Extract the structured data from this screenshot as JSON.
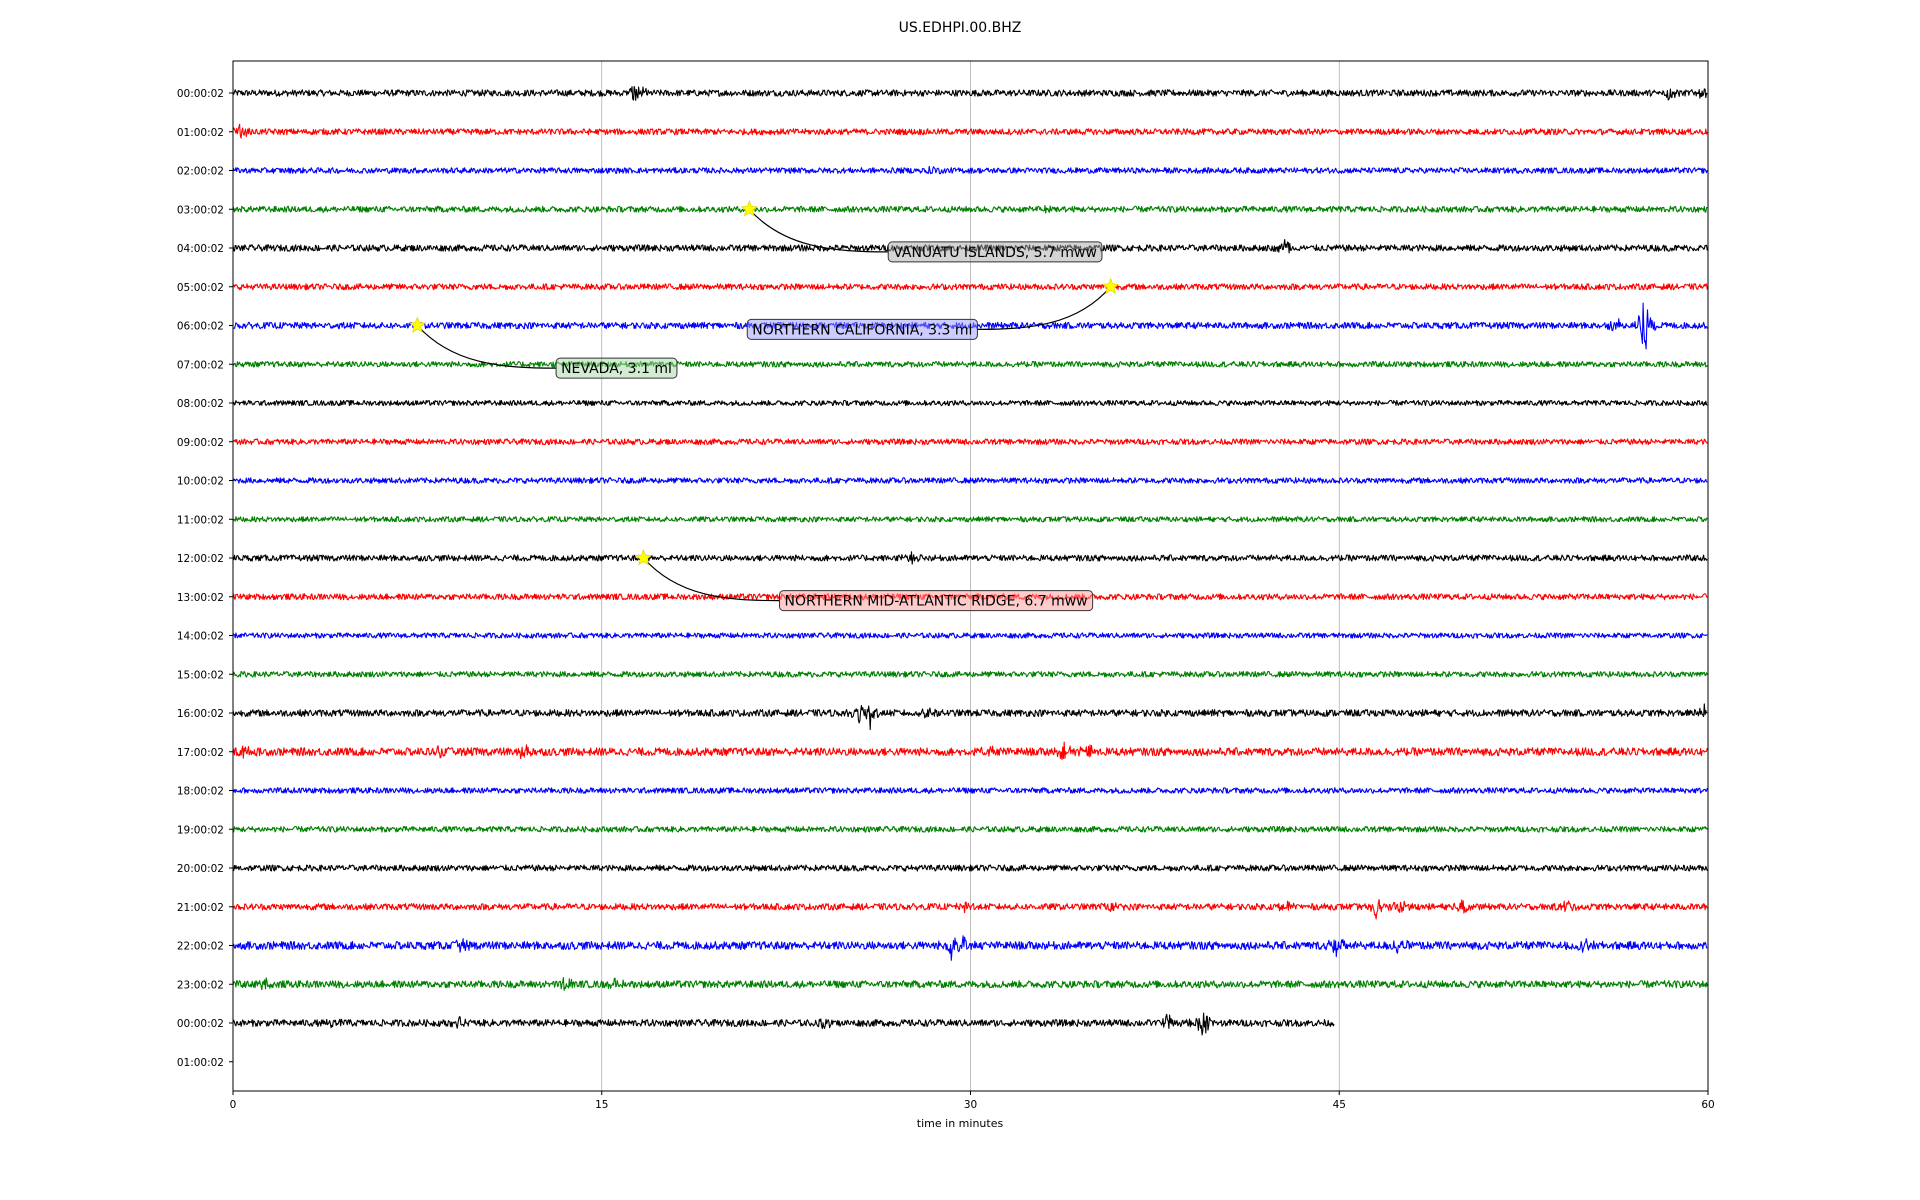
{
  "chart_data": {
    "type": "line",
    "title": "US.EDHPI.00.BHZ",
    "xlabel": "time in minutes",
    "ylabel": "",
    "xlim": [
      0,
      60
    ],
    "xticks": [
      "0",
      "15",
      "30",
      "45",
      "60"
    ],
    "grid": "vertical",
    "colors": [
      "#000000",
      "#ff0000",
      "#0000ff",
      "#008000"
    ],
    "row_labels": [
      "00:00:02",
      "01:00:02",
      "02:00:02",
      "03:00:02",
      "04:00:02",
      "05:00:02",
      "06:00:02",
      "07:00:02",
      "08:00:02",
      "09:00:02",
      "10:00:02",
      "11:00:02",
      "12:00:02",
      "13:00:02",
      "14:00:02",
      "15:00:02",
      "16:00:02",
      "17:00:02",
      "18:00:02",
      "19:00:02",
      "20:00:02",
      "21:00:02",
      "22:00:02",
      "23:00:02",
      "00:00:02",
      "01:00:02"
    ],
    "trace_end_minutes": [
      60,
      60,
      60,
      60,
      60,
      60,
      60,
      60,
      60,
      60,
      60,
      60,
      60,
      60,
      60,
      60,
      60,
      60,
      60,
      60,
      60,
      60,
      60,
      60,
      44.8,
      0
    ],
    "noise_level": [
      0.16,
      0.15,
      0.14,
      0.15,
      0.16,
      0.15,
      0.16,
      0.14,
      0.13,
      0.14,
      0.14,
      0.13,
      0.15,
      0.15,
      0.13,
      0.14,
      0.17,
      0.2,
      0.14,
      0.14,
      0.15,
      0.16,
      0.2,
      0.18,
      0.17,
      0
    ],
    "spikes": [
      {
        "row": 0,
        "minute": 16.4,
        "amp": 0.7
      },
      {
        "row": 0,
        "minute": 58.4,
        "amp": 0.4
      },
      {
        "row": 0,
        "minute": 59.9,
        "amp": 0.35
      },
      {
        "row": 1,
        "minute": 0.3,
        "amp": 0.35
      },
      {
        "row": 2,
        "minute": 28.4,
        "amp": 0.3
      },
      {
        "row": 3,
        "minute": 33.2,
        "amp": 0.4
      },
      {
        "row": 4,
        "minute": 42.8,
        "amp": 0.5
      },
      {
        "row": 6,
        "minute": 57.4,
        "amp": 1.8
      },
      {
        "row": 6,
        "minute": 56.3,
        "amp": 0.4
      },
      {
        "row": 12,
        "minute": 27.6,
        "amp": 0.45
      },
      {
        "row": 16,
        "minute": 25.9,
        "amp": 1.0
      },
      {
        "row": 16,
        "minute": 25.5,
        "amp": 0.5
      },
      {
        "row": 16,
        "minute": 28.1,
        "amp": 0.35
      },
      {
        "row": 16,
        "minute": 59.9,
        "amp": 0.5
      },
      {
        "row": 17,
        "minute": 11.8,
        "amp": 0.6
      },
      {
        "row": 17,
        "minute": 8.5,
        "amp": 0.3
      },
      {
        "row": 17,
        "minute": 30.8,
        "amp": 0.35
      },
      {
        "row": 17,
        "minute": 33.8,
        "amp": 0.4
      },
      {
        "row": 17,
        "minute": 34.8,
        "amp": 0.35
      },
      {
        "row": 17,
        "minute": 0.4,
        "amp": 0.3
      },
      {
        "row": 21,
        "minute": 29.9,
        "amp": 0.4
      },
      {
        "row": 21,
        "minute": 35.7,
        "amp": 0.35
      },
      {
        "row": 21,
        "minute": 42.9,
        "amp": 0.4
      },
      {
        "row": 21,
        "minute": 46.5,
        "amp": 0.5
      },
      {
        "row": 21,
        "minute": 47.5,
        "amp": 0.35
      },
      {
        "row": 21,
        "minute": 50.0,
        "amp": 0.4
      },
      {
        "row": 21,
        "minute": 54.3,
        "amp": 0.35
      },
      {
        "row": 22,
        "minute": 29.3,
        "amp": 0.9
      },
      {
        "row": 22,
        "minute": 29.8,
        "amp": 0.5
      },
      {
        "row": 22,
        "minute": 44.9,
        "amp": 0.5
      },
      {
        "row": 22,
        "minute": 47.4,
        "amp": 0.4
      },
      {
        "row": 22,
        "minute": 55.0,
        "amp": 0.35
      },
      {
        "row": 22,
        "minute": 9.3,
        "amp": 0.3
      },
      {
        "row": 23,
        "minute": 13.6,
        "amp": 0.4
      },
      {
        "row": 23,
        "minute": 15.6,
        "amp": 0.35
      },
      {
        "row": 23,
        "minute": 1.3,
        "amp": 0.3
      },
      {
        "row": 24,
        "minute": 38.0,
        "amp": 0.5
      },
      {
        "row": 24,
        "minute": 39.5,
        "amp": 0.9
      },
      {
        "row": 24,
        "minute": 9.1,
        "amp": 0.35
      },
      {
        "row": 24,
        "minute": 4.1,
        "amp": 0.3
      },
      {
        "row": 24,
        "minute": 24.1,
        "amp": 0.3
      }
    ],
    "annotations": [
      {
        "text": "VANUATU ISLANDS, 5.7 mww",
        "row": 3,
        "minute": 21.0,
        "label_row": 4.1,
        "label_minute": 31.0,
        "bg": "#a9a9a9"
      },
      {
        "text": "NORTHERN CALIFORNIA, 3.3 ml",
        "row": 5,
        "minute": 35.7,
        "label_row": 6.1,
        "label_minute": 25.6,
        "bg": "#9999ff"
      },
      {
        "text": "NEVADA, 3.1 ml",
        "row": 6,
        "minute": 7.5,
        "label_row": 7.1,
        "label_minute": 15.6,
        "bg": "#a8d8a8"
      },
      {
        "text": "NORTHERN MID-ATLANTIC RIDGE, 6.7 mww",
        "row": 12,
        "minute": 16.7,
        "label_row": 13.1,
        "label_minute": 28.6,
        "bg": "#ff9999"
      }
    ]
  }
}
